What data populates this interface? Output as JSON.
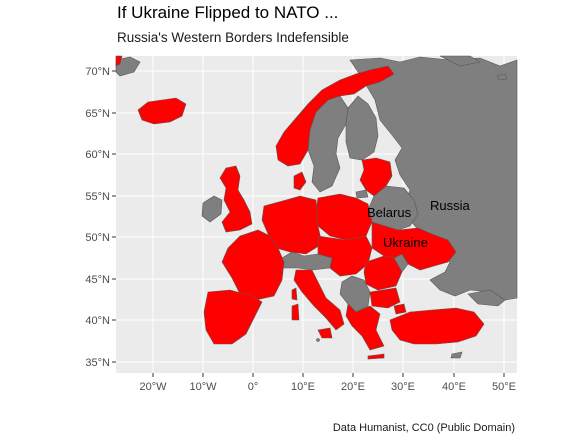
{
  "title": "If Ukraine Flipped to NATO ...",
  "subtitle": "Russia's Western Borders Indefensible",
  "caption": "Data Humanist, CC0 (Public Domain)",
  "colors": {
    "panel_background": "#ebebeb",
    "grid": "#ffffff",
    "nato": "#ff0000",
    "non_nato": "#7f7f7f",
    "border": "#595959"
  },
  "axes": {
    "y_ticks": [
      "70°N",
      "65°N",
      "60°N",
      "55°N",
      "50°N",
      "45°N",
      "40°N",
      "35°N"
    ],
    "x_ticks": [
      "20°W",
      "10°W",
      "0°",
      "10°E",
      "20°E",
      "30°E",
      "40°E",
      "50°E"
    ]
  },
  "labels": {
    "belarus": "Belarus",
    "russia": "Russia",
    "ukraine": "Ukraine"
  }
}
